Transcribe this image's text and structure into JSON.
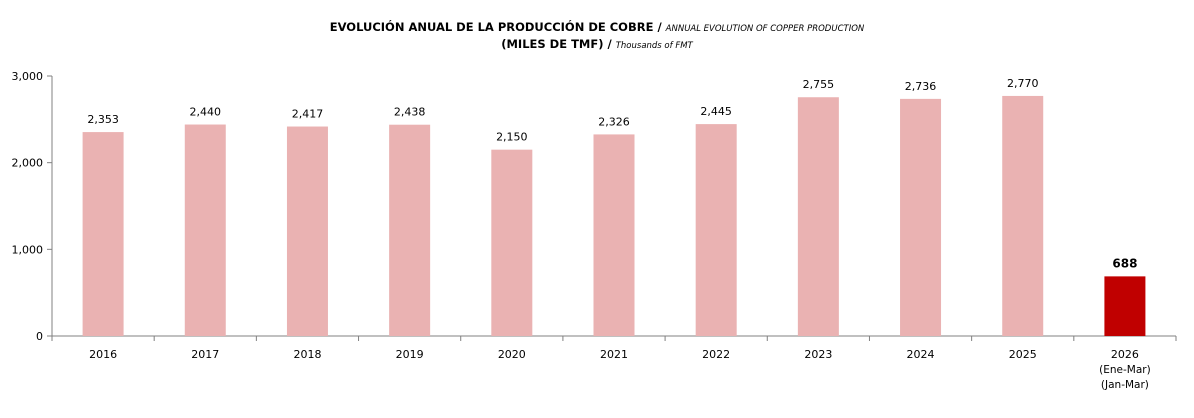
{
  "title": {
    "line1_main": "EVOLUCIÓN ANUAL DE LA PRODUCCIÓN DE COBRE",
    "line1_sep": " / ",
    "line1_sub": "ANNUAL EVOLUTION OF COPPER PRODUCTION",
    "line2_main": "(MILES DE TMF)",
    "line2_sep": " / ",
    "line2_sub": "Thousands of FMT"
  },
  "colors": {
    "bar": "#eab2b2",
    "highlight": "#c00000",
    "axis": "#808080"
  },
  "chart_data": {
    "type": "bar",
    "categories": [
      "2016",
      "2017",
      "2018",
      "2019",
      "2020",
      "2021",
      "2022",
      "2023",
      "2024",
      "2025",
      "2026"
    ],
    "category_sublabels": [
      [],
      [],
      [],
      [],
      [],
      [],
      [],
      [],
      [],
      [],
      [
        "(Ene-Mar)",
        "(Jan-Mar)"
      ]
    ],
    "values": [
      2353,
      2440,
      2417,
      2438,
      2150,
      2326,
      2445,
      2755,
      2736,
      2770,
      688
    ],
    "value_labels": [
      "2,353",
      "2,440",
      "2,417",
      "2,438",
      "2,150",
      "2,326",
      "2,445",
      "2,755",
      "2,736",
      "2,770",
      "688"
    ],
    "highlight_index": 10,
    "ylim": [
      0,
      3000
    ],
    "yticks": [
      0,
      1000,
      2000,
      3000
    ],
    "ytick_labels": [
      "0",
      "1,000",
      "2,000",
      "3,000"
    ],
    "grid": false,
    "legend": "none"
  }
}
